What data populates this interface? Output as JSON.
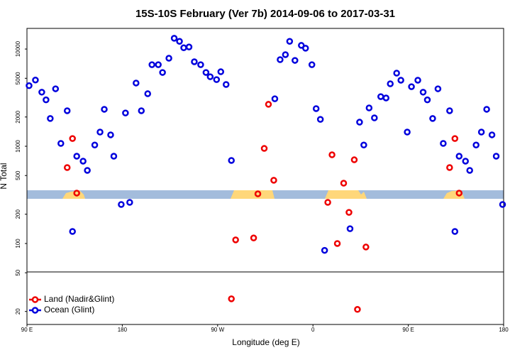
{
  "chart_data": {
    "type": "scatter",
    "title": "15S-10S February (Ver 7b)   2014-09-06 to 2017-03-31",
    "x_label": "Longitude (deg E)",
    "y_label": "N Total",
    "log_y": true,
    "legend": "lower left",
    "xlim": [
      90,
      540
    ],
    "xticks": [
      {
        "value": 90,
        "label": "90 E"
      },
      180,
      {
        "value": 270,
        "label": "90 W"
      },
      {
        "value": 360,
        "label": "0"
      },
      {
        "value": 450,
        "label": "90 E"
      },
      {
        "value": 540,
        "label": "180"
      }
    ],
    "ylim": [
      14.7,
      16300
    ],
    "yticks": [
      20,
      50,
      100,
      200,
      500,
      1000,
      2000,
      5000,
      10000
    ],
    "series": [
      {
        "name": "Land (Nadir&Glint)",
        "color": "#ee0000",
        "x": [
          128,
          133,
          137,
          283,
          287,
          304,
          308,
          314,
          318,
          323,
          374,
          378,
          383,
          389,
          394,
          399,
          402,
          410,
          489,
          494,
          498
        ],
        "values": [
          604,
          1200,
          330,
          27,
          109,
          114,
          324,
          950,
          2700,
          447,
          265,
          817,
          100,
          417,
          209,
          726,
          21,
          92,
          604,
          1200,
          330
        ]
      },
      {
        "name": "Ocean (Glint)",
        "color": "#0000dd",
        "x": [
          92,
          98,
          104,
          108,
          112,
          117,
          122,
          128,
          133,
          137,
          143,
          147,
          154,
          159,
          163,
          169,
          172,
          179,
          183,
          187,
          193,
          198,
          204,
          208,
          214,
          218,
          224,
          229,
          234,
          238,
          243,
          248,
          254,
          259,
          263,
          269,
          273,
          278,
          283,
          324,
          329,
          334,
          338,
          343,
          349,
          353,
          359,
          363,
          367,
          371,
          395,
          404,
          408,
          413,
          418,
          424,
          429,
          433,
          439,
          443,
          449,
          453,
          459,
          464,
          468,
          473,
          478,
          483,
          489,
          494,
          498,
          504,
          508,
          514,
          519,
          524,
          529,
          533,
          539
        ],
        "values": [
          4200,
          4800,
          3600,
          3000,
          1930,
          3900,
          1070,
          2320,
          133,
          790,
          703,
          565,
          1030,
          1400,
          2400,
          1310,
          790,
          252,
          2200,
          265,
          4470,
          2320,
          3470,
          6900,
          6900,
          5740,
          8040,
          12900,
          12000,
          10300,
          10500,
          7400,
          6900,
          5740,
          5190,
          4850,
          5840,
          4320,
          715,
          3080,
          7780,
          8750,
          12000,
          7640,
          10900,
          10200,
          6900,
          2440,
          1890,
          85,
          142,
          1770,
          1030,
          2480,
          1960,
          3240,
          3140,
          4390,
          5650,
          4780,
          1400,
          4100,
          4780,
          3600,
          3000,
          1930,
          3900,
          1070,
          2320,
          133,
          790,
          703,
          565,
          1030,
          1400,
          2400,
          1310,
          790,
          252
        ]
      }
    ]
  }
}
